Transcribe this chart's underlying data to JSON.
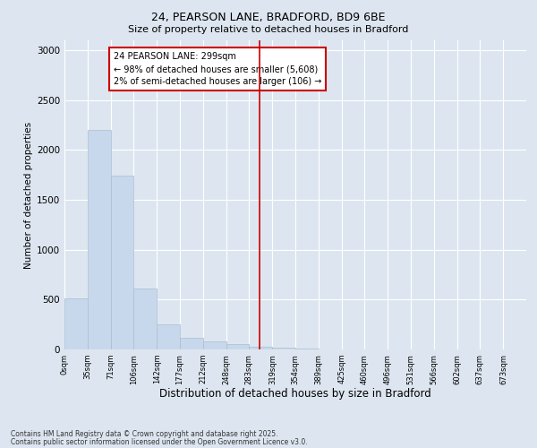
{
  "title1": "24, PEARSON LANE, BRADFORD, BD9 6BE",
  "title2": "Size of property relative to detached houses in Bradford",
  "xlabel": "Distribution of detached houses by size in Bradford",
  "ylabel": "Number of detached properties",
  "bar_color": "#c8d8ec",
  "bar_edge_color": "#aabdd0",
  "background_color": "#dde6f0",
  "plot_bg_color": "#dde6f0",
  "grid_color": "#ffffff",
  "vline_color": "#cc0000",
  "vline_x": 299,
  "annotation_title": "24 PEARSON LANE: 299sqm",
  "annotation_line1": "← 98% of detached houses are smaller (5,608)",
  "annotation_line2": "2% of semi-detached houses are larger (106) →",
  "footer1": "Contains HM Land Registry data © Crown copyright and database right 2025.",
  "footer2": "Contains public sector information licensed under the Open Government Licence v3.0.",
  "bins": [
    0,
    35,
    71,
    106,
    142,
    177,
    212,
    248,
    283,
    319,
    354,
    389,
    425,
    460,
    496,
    531,
    566,
    602,
    637,
    673,
    708
  ],
  "counts": [
    510,
    2200,
    1740,
    610,
    250,
    120,
    80,
    50,
    25,
    20,
    5,
    3,
    2,
    2,
    1,
    1,
    1,
    1,
    1,
    1
  ],
  "ylim": [
    0,
    3100
  ],
  "yticks": [
    0,
    500,
    1000,
    1500,
    2000,
    2500,
    3000
  ]
}
